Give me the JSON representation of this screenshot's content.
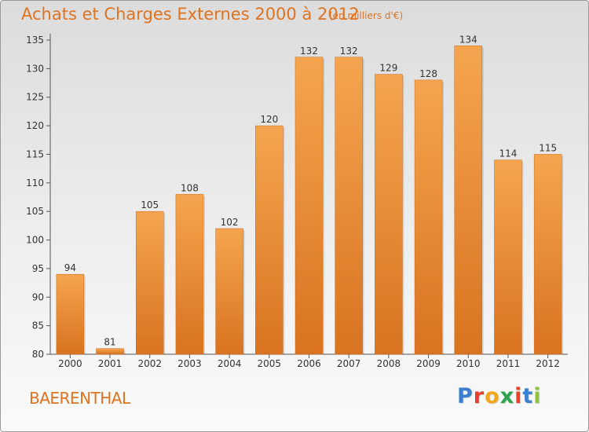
{
  "header": {
    "title": "Achats et Charges Externes 2000 à 2012",
    "subtitle": "(en milliers d'€)"
  },
  "footer": {
    "commune": "BAERENTHAL",
    "logo_letters": [
      "P",
      "r",
      "o",
      "x",
      "i",
      "t",
      "i"
    ],
    "logo_colors": [
      "#3b7fd0",
      "#e8402a",
      "#f2a71b",
      "#2aa54a",
      "#e8402a",
      "#3b7fd0",
      "#8fc23e"
    ]
  },
  "colors": {
    "bar_light": "#f5a54f",
    "bar_dark": "#d9731f",
    "accent": "#e0731f"
  },
  "chart_data": {
    "type": "bar",
    "categories": [
      "2000",
      "2001",
      "2002",
      "2003",
      "2004",
      "2005",
      "2006",
      "2007",
      "2008",
      "2009",
      "2010",
      "2011",
      "2012"
    ],
    "values": [
      94,
      81,
      105,
      108,
      102,
      120,
      132,
      132,
      129,
      128,
      134,
      114,
      115
    ],
    "ylim": [
      80,
      135
    ],
    "yticks": [
      80,
      85,
      90,
      95,
      100,
      105,
      110,
      115,
      120,
      125,
      130,
      135
    ],
    "grid": false
  }
}
